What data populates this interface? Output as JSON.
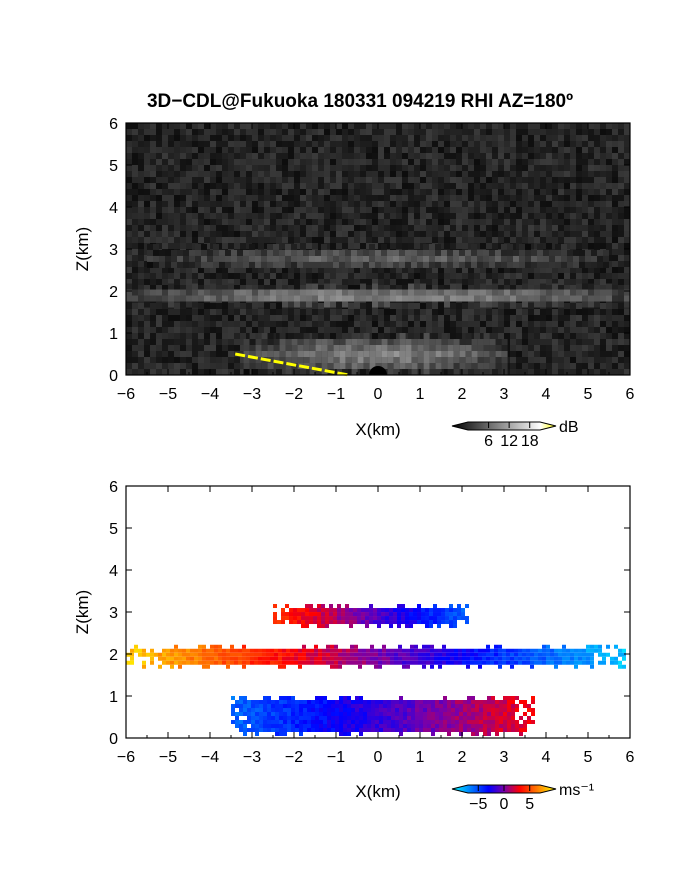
{
  "figure": {
    "title": "3D−CDL@Fukuoka 180331 094219 RHI AZ=180º"
  },
  "chart_data": [
    {
      "type": "heatmap",
      "name": "backscatter",
      "xlabel": "X(km)",
      "ylabel": "Z(km)",
      "xlim": [
        -6,
        6
      ],
      "ylim": [
        0,
        6
      ],
      "xticks": [
        "−6",
        "−5",
        "−4",
        "−3",
        "−2",
        "−1",
        "0",
        "1",
        "2",
        "3",
        "4",
        "5",
        "6"
      ],
      "yticks": [
        "0",
        "1",
        "2",
        "3",
        "4",
        "5",
        "6"
      ],
      "colorbar": {
        "unit": "dB",
        "ticks": [
          "6",
          "12",
          "18"
        ],
        "tick_values": [
          6,
          12,
          18
        ],
        "range": [
          0,
          21
        ],
        "colors": [
          "#000000",
          "#ffffff",
          "#ffff00"
        ]
      },
      "layers": [
        {
          "x_range": [
            -6,
            6
          ],
          "z_center": 1.95,
          "z_thickness": 0.38,
          "intensity_db": 12
        },
        {
          "x_range": [
            -5.5,
            5.5
          ],
          "z_center": 2.85,
          "z_thickness": 0.45,
          "intensity_db": 8
        },
        {
          "x_range": [
            -3.2,
            3.0
          ],
          "z_center": 0.55,
          "z_thickness": 0.75,
          "intensity_db": 11
        }
      ],
      "saturated_segment": {
        "x": [
          -3.4,
          -0.7
        ],
        "z": [
          0.5,
          0.0
        ]
      }
    },
    {
      "type": "heatmap",
      "name": "doppler_velocity",
      "xlabel": "X(km)",
      "ylabel": "Z(km)",
      "xlim": [
        -6,
        6
      ],
      "ylim": [
        0,
        6
      ],
      "xticks": [
        "−6",
        "−5",
        "−4",
        "−3",
        "−2",
        "−1",
        "0",
        "1",
        "2",
        "3",
        "4",
        "5",
        "6"
      ],
      "yticks": [
        "0",
        "1",
        "2",
        "3",
        "4",
        "5",
        "6"
      ],
      "colorbar": {
        "unit": "ms⁻¹",
        "ticks": [
          "−5",
          "0",
          "5"
        ],
        "tick_values": [
          -5,
          0,
          5
        ],
        "range": [
          -7,
          7
        ],
        "colors": [
          "#00ffff",
          "#0000ff",
          "#ff0000",
          "#ffff00"
        ]
      },
      "layers": [
        {
          "x_range": [
            -6,
            5.9
          ],
          "z_center": 1.98,
          "z_thickness": 0.4,
          "v_left": 6,
          "v_right": -6
        },
        {
          "x_range": [
            -2.5,
            2.1
          ],
          "z_center": 2.95,
          "z_thickness": 0.4,
          "v_left": 3,
          "v_right": -4
        },
        {
          "x_range": [
            -3.5,
            3.7
          ],
          "z_center": 0.55,
          "z_thickness": 0.75,
          "v_left": -4,
          "v_right": 2
        }
      ]
    }
  ]
}
